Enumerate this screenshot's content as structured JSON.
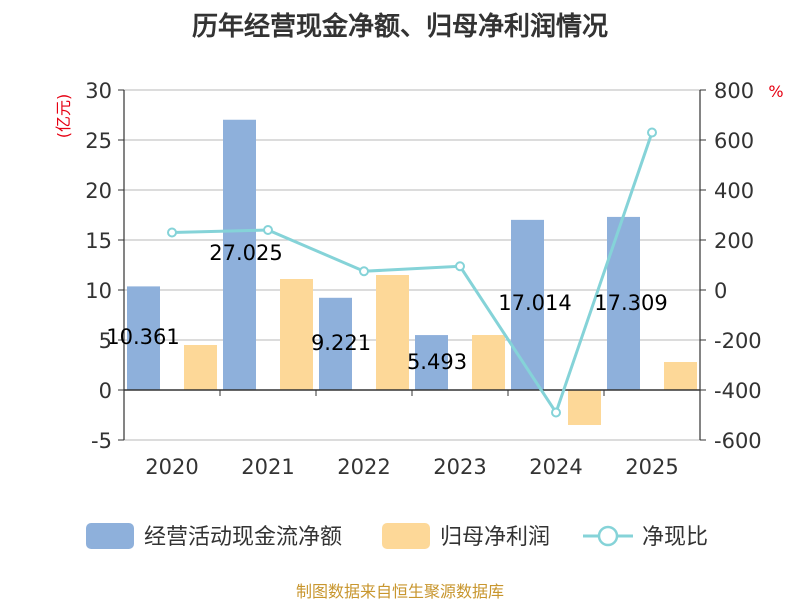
{
  "chart_data": {
    "type": "bar",
    "title": "历年经营现金净额、归母净利润情况",
    "categories": [
      "2020",
      "2021",
      "2022",
      "2023",
      "2024",
      "2025"
    ],
    "y_left": {
      "unit": "(亿元)",
      "range": [
        -5,
        30
      ],
      "ticks": [
        30,
        25,
        20,
        15,
        10,
        5,
        0,
        -5
      ]
    },
    "y_right": {
      "unit": "%",
      "range": [
        -600,
        800
      ],
      "ticks": [
        800,
        600,
        400,
        200,
        0,
        -200,
        -400,
        -600
      ]
    },
    "series": [
      {
        "name": "经营活动现金流净额",
        "kind": "bar",
        "axis": "left",
        "color": "#8eb0db",
        "values": [
          10.361,
          27.025,
          9.221,
          5.493,
          17.014,
          17.309
        ],
        "labels": [
          "10.361",
          "27.025",
          "9.221",
          "5.493",
          "17.014",
          "17.309"
        ]
      },
      {
        "name": "归母净利润",
        "kind": "bar",
        "axis": "left",
        "color": "#fdd898",
        "values": [
          4.5,
          11.1,
          11.5,
          5.5,
          -3.5,
          2.8
        ]
      },
      {
        "name": "净现比",
        "kind": "line",
        "axis": "right",
        "color": "#85d3d8",
        "values": [
          230,
          240,
          75,
          95,
          -490,
          630
        ]
      }
    ],
    "grid": true,
    "legend_position": "bottom"
  },
  "source": "制图数据来自恒生聚源数据库"
}
